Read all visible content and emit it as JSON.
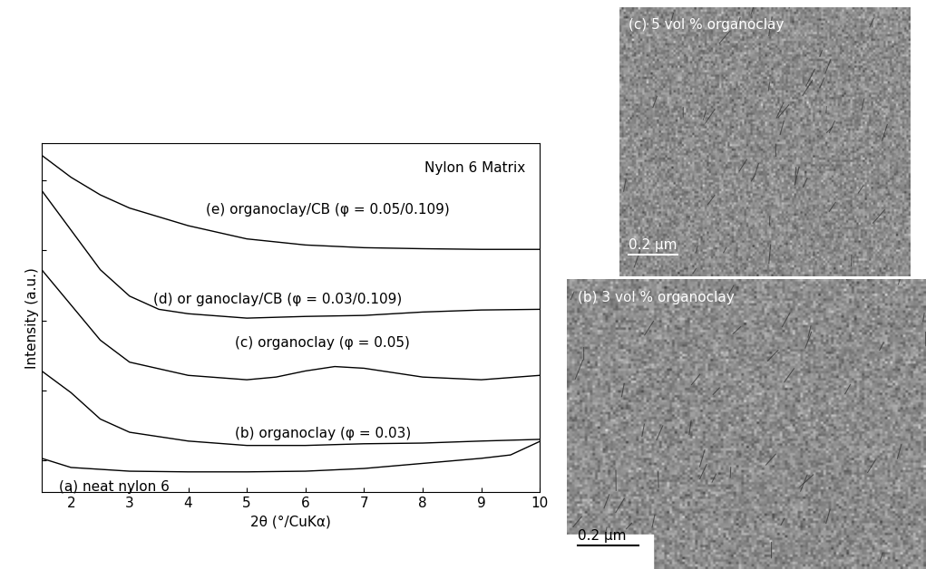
{
  "chart_data": {
    "type": "line",
    "annotations": [
      "Nylon 6 Matrix"
    ],
    "x_label": "2θ (°/CuKα)",
    "y_label": "Intensity (a.u.)",
    "xlim": [
      1.5,
      10
    ],
    "xticks": [
      2,
      3,
      4,
      5,
      6,
      7,
      8,
      9,
      10
    ],
    "ylim": [
      0,
      10.3
    ],
    "yticks": [
      0.94,
      3.01,
      5.06,
      7.14,
      9.22
    ],
    "tick_labels": "x",
    "grid": false,
    "series": [
      {
        "name": "(a) neat nylon 6",
        "color": "#000000",
        "x": [
          1.5,
          2,
          3,
          4,
          5,
          6,
          7,
          8,
          9,
          9.5,
          10
        ],
        "values": [
          1.0,
          0.73,
          0.62,
          0.6,
          0.6,
          0.62,
          0.7,
          0.85,
          1.0,
          1.1,
          1.5
        ]
      },
      {
        "name": "(b) organoclay (φ = 0.03)",
        "color": "#000000",
        "x": [
          1.5,
          2,
          2.5,
          3,
          4,
          5,
          6,
          7,
          8,
          9,
          10
        ],
        "values": [
          3.58,
          2.94,
          2.16,
          1.77,
          1.51,
          1.38,
          1.38,
          1.43,
          1.45,
          1.51,
          1.56
        ]
      },
      {
        "name": "(c) organoclay (φ = 0.05)",
        "color": "#000000",
        "x": [
          1.5,
          2,
          2.5,
          3,
          4,
          5,
          5.5,
          6,
          6.5,
          7,
          8,
          9,
          10
        ],
        "values": [
          6.57,
          5.53,
          4.49,
          3.84,
          3.45,
          3.32,
          3.4,
          3.58,
          3.71,
          3.66,
          3.4,
          3.32,
          3.45
        ]
      },
      {
        "name": "(d) or ganoclay/CB (φ = 0.03/0.109)",
        "color": "#000000",
        "x": [
          1.5,
          2,
          2.5,
          3,
          3.5,
          4,
          5,
          6,
          7,
          8,
          9,
          10
        ],
        "values": [
          8.91,
          7.74,
          6.57,
          5.79,
          5.4,
          5.27,
          5.14,
          5.19,
          5.22,
          5.32,
          5.38,
          5.4
        ]
      },
      {
        "name": "(e) organoclay/CB (φ = 0.05/0.109)",
        "color": "#000000",
        "x": [
          1.5,
          2,
          2.5,
          3,
          4,
          5,
          6,
          7,
          8,
          9,
          10
        ],
        "values": [
          9.95,
          9.3,
          8.78,
          8.39,
          7.87,
          7.48,
          7.3,
          7.22,
          7.19,
          7.17,
          7.17
        ]
      }
    ]
  },
  "images": [
    {
      "label": "(c) 5 vol % organoclay",
      "scale_bar": "0.2 µm"
    },
    {
      "label": "(b) 3 vol % organoclay",
      "scale_bar": "0.2 µm"
    }
  ]
}
